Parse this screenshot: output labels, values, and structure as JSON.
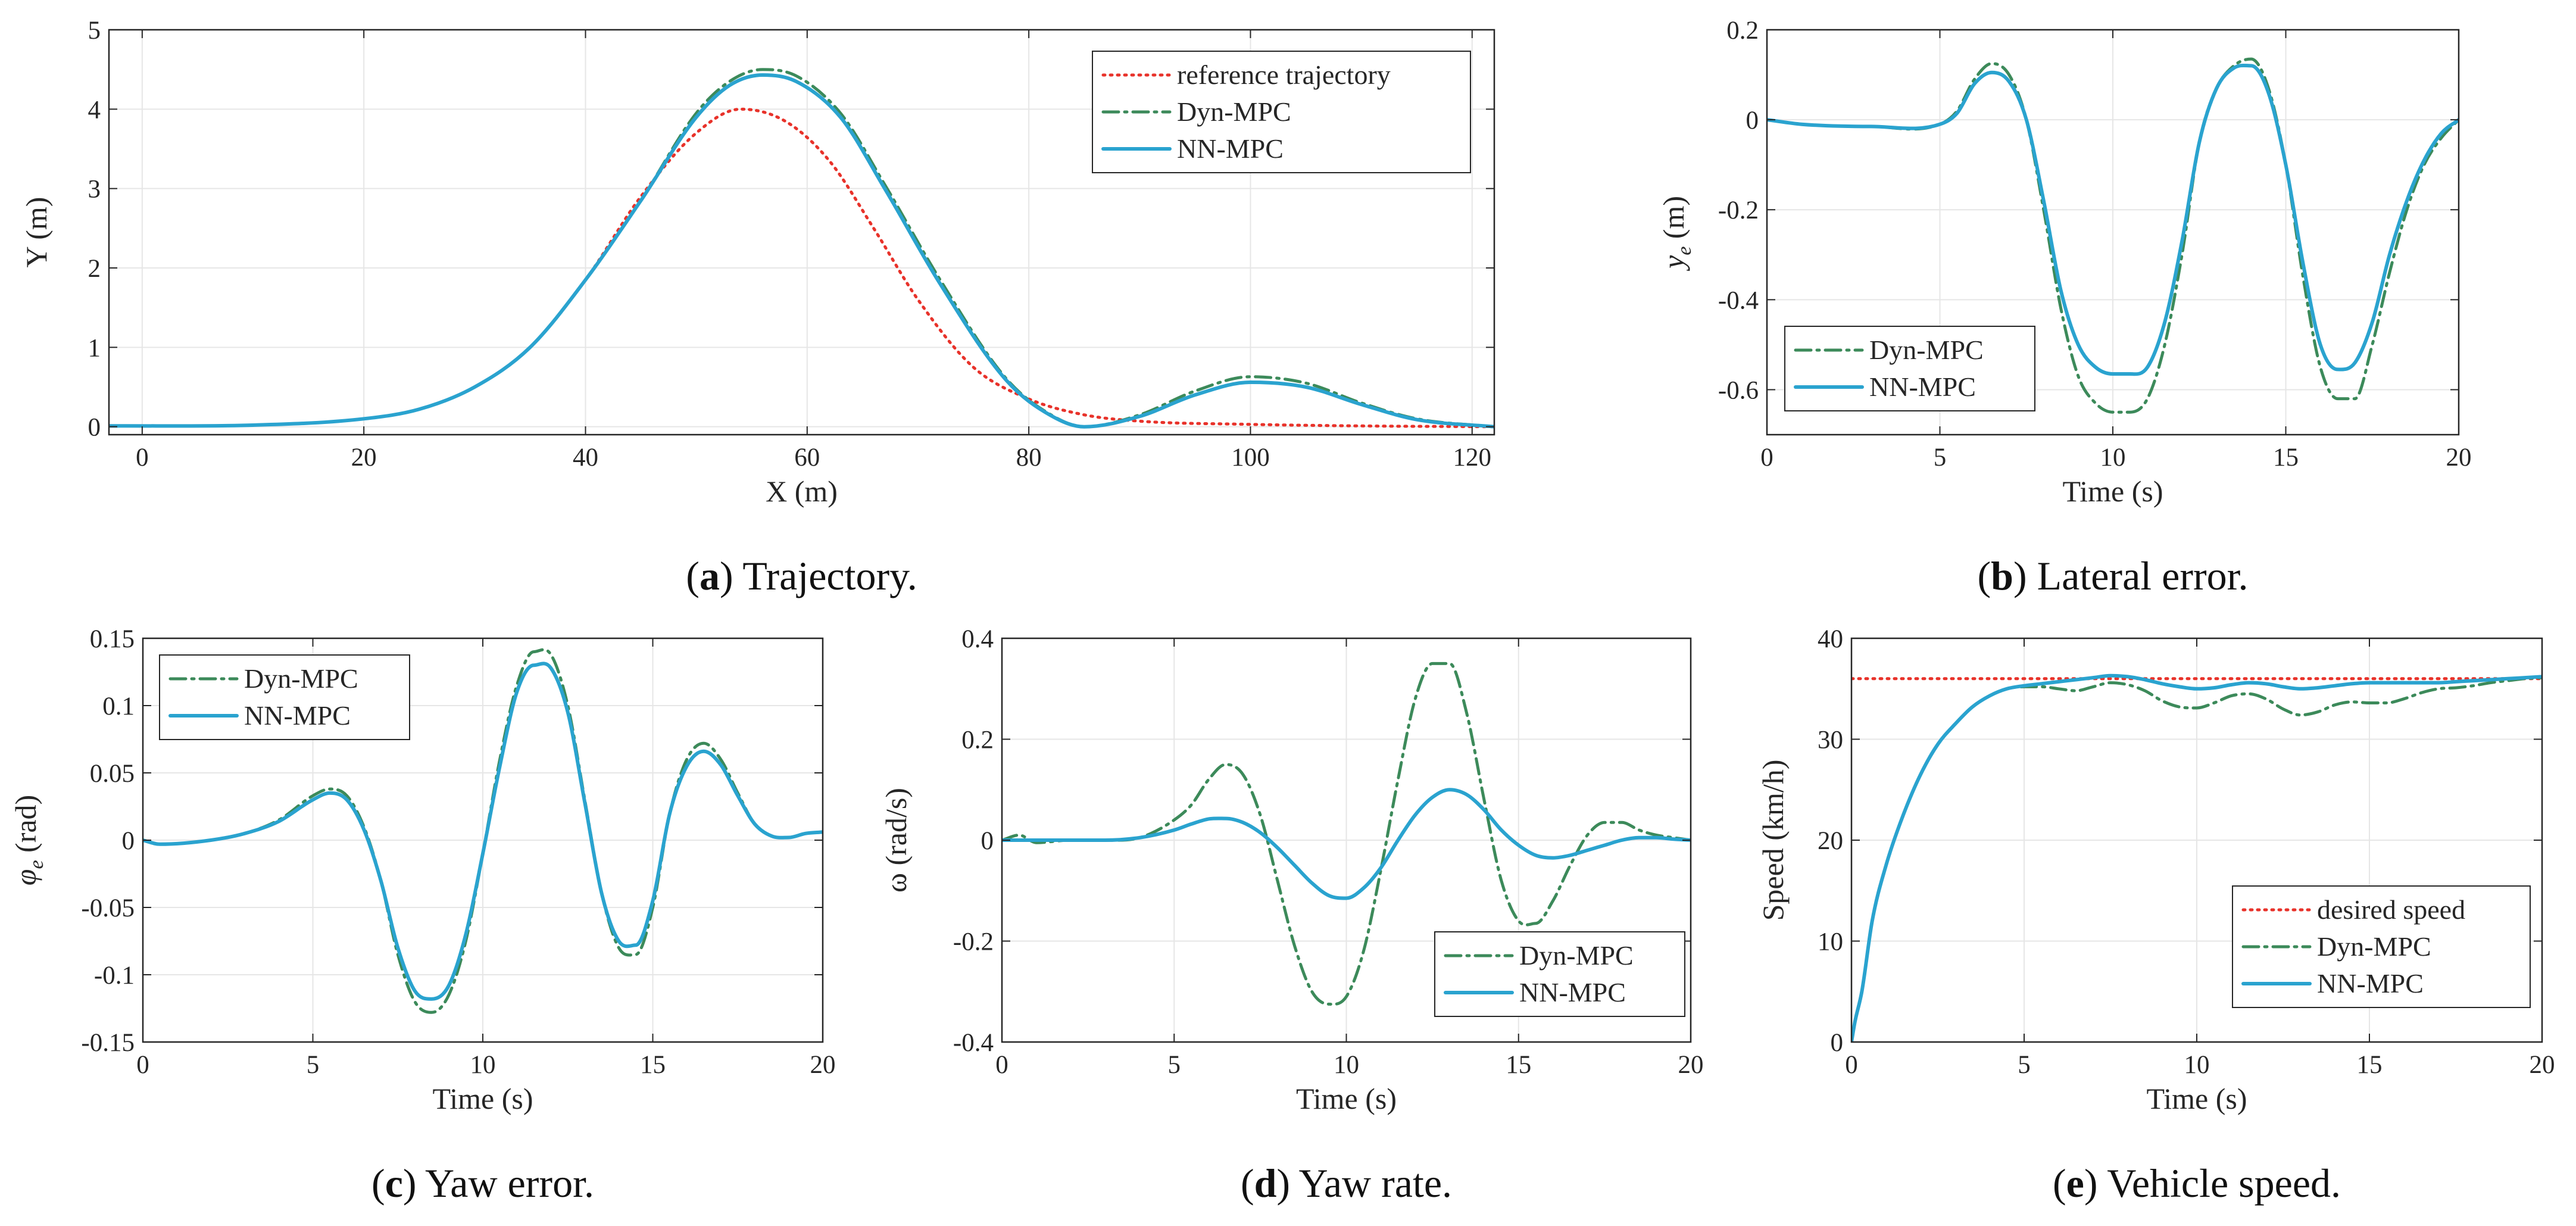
{
  "colors": {
    "reference": "#e8322a",
    "dyn": "#3c8a5a",
    "nn": "#2aa3cf",
    "grid": "#e6e6e6",
    "axis": "#262626"
  },
  "chart_data": [
    {
      "id": "a",
      "type": "line",
      "caption": {
        "letter": "a",
        "text": " Trajectory."
      },
      "xlabel": "X (m)",
      "ylabel": "Y (m)",
      "xlim": [
        -3,
        122
      ],
      "ylim": [
        -0.1,
        5
      ],
      "xticks": [
        0,
        20,
        40,
        60,
        80,
        100,
        120
      ],
      "yticks": [
        0,
        1,
        2,
        3,
        4,
        5
      ],
      "grid": true,
      "legend_position": "top-right",
      "series": [
        {
          "name": "reference trajectory",
          "style": "dotted",
          "color": "#e8322a",
          "x": [
            -3,
            10,
            20,
            25,
            30,
            35,
            40,
            45,
            50,
            54,
            58,
            62,
            66,
            70,
            75,
            80,
            85,
            90,
            100,
            110,
            122
          ],
          "y": [
            0.01,
            0.02,
            0.1,
            0.22,
            0.5,
            1.0,
            1.85,
            2.9,
            3.7,
            4.0,
            3.85,
            3.35,
            2.5,
            1.6,
            0.75,
            0.35,
            0.15,
            0.07,
            0.03,
            0.01,
            0.0
          ]
        },
        {
          "name": "Dyn-MPC",
          "style": "dashdot",
          "color": "#3c8a5a",
          "x": [
            -3,
            10,
            20,
            25,
            30,
            35,
            40,
            45,
            50,
            53,
            56,
            59,
            63,
            67,
            72,
            78,
            82,
            85,
            90,
            95,
            100,
            105,
            110,
            115,
            122
          ],
          "y": [
            0.01,
            0.02,
            0.1,
            0.22,
            0.5,
            1.0,
            1.85,
            2.85,
            3.95,
            4.35,
            4.5,
            4.42,
            3.95,
            3.05,
            1.85,
            0.6,
            0.15,
            0.0,
            0.15,
            0.45,
            0.63,
            0.55,
            0.3,
            0.1,
            0.0
          ]
        },
        {
          "name": "NN-MPC",
          "style": "solid",
          "color": "#2aa3cf",
          "x": [
            -3,
            10,
            20,
            25,
            30,
            35,
            40,
            45,
            50,
            53,
            56,
            59,
            63,
            67,
            72,
            78,
            82,
            85,
            90,
            95,
            100,
            105,
            110,
            115,
            122
          ],
          "y": [
            0.01,
            0.02,
            0.1,
            0.22,
            0.5,
            1.0,
            1.85,
            2.85,
            3.9,
            4.3,
            4.43,
            4.35,
            3.9,
            3.0,
            1.8,
            0.58,
            0.14,
            0.0,
            0.13,
            0.4,
            0.56,
            0.5,
            0.28,
            0.09,
            0.0
          ]
        }
      ]
    },
    {
      "id": "b",
      "type": "line",
      "caption": {
        "letter": "b",
        "text": " Lateral error."
      },
      "xlabel": "Time (s)",
      "ylabel_main": "y",
      "ylabel_sub": "e",
      "ylabel_unit": " (m)",
      "xlim": [
        0,
        20
      ],
      "ylim": [
        -0.7,
        0.2
      ],
      "xticks": [
        0,
        5,
        10,
        15,
        20
      ],
      "yticks": [
        0.2,
        0,
        -0.2,
        -0.4,
        -0.6
      ],
      "grid": true,
      "legend_position": "bottom-left",
      "series": [
        {
          "name": "Dyn-MPC",
          "style": "dashdot",
          "color": "#3c8a5a",
          "x": [
            0,
            1,
            3,
            5,
            5.5,
            6,
            6.5,
            7,
            7.5,
            8,
            8.5,
            9,
            9.5,
            10,
            10.5,
            11,
            11.5,
            12,
            12.5,
            13,
            13.5,
            14,
            14.5,
            15,
            15.5,
            16,
            16.5,
            17,
            17.5,
            18,
            18.5,
            19,
            19.5,
            20
          ],
          "y": [
            0,
            -0.01,
            -0.015,
            -0.01,
            0.02,
            0.09,
            0.125,
            0.1,
            0.0,
            -0.2,
            -0.42,
            -0.57,
            -0.63,
            -0.65,
            -0.65,
            -0.62,
            -0.5,
            -0.3,
            -0.05,
            0.07,
            0.12,
            0.135,
            0.07,
            -0.1,
            -0.35,
            -0.55,
            -0.62,
            -0.62,
            -0.5,
            -0.34,
            -0.2,
            -0.1,
            -0.04,
            0.0
          ]
        },
        {
          "name": "NN-MPC",
          "style": "solid",
          "color": "#2aa3cf",
          "x": [
            0,
            1,
            3,
            5,
            5.5,
            6,
            6.5,
            7,
            7.5,
            8,
            8.5,
            9,
            9.5,
            10,
            10.5,
            11,
            11.5,
            12,
            12.5,
            13,
            13.5,
            14,
            14.5,
            15,
            15.5,
            16,
            16.5,
            17,
            17.5,
            18,
            18.5,
            19,
            19.5,
            20
          ],
          "y": [
            0,
            -0.01,
            -0.015,
            -0.01,
            0.015,
            0.08,
            0.105,
            0.085,
            0.0,
            -0.18,
            -0.38,
            -0.5,
            -0.55,
            -0.565,
            -0.565,
            -0.55,
            -0.45,
            -0.27,
            -0.05,
            0.07,
            0.115,
            0.12,
            0.06,
            -0.1,
            -0.32,
            -0.5,
            -0.555,
            -0.54,
            -0.45,
            -0.3,
            -0.18,
            -0.09,
            -0.03,
            0.0
          ]
        }
      ]
    },
    {
      "id": "c",
      "type": "line",
      "caption": {
        "letter": "c",
        "text": " Yaw error."
      },
      "xlabel": "Time (s)",
      "ylabel_main": "φ",
      "ylabel_sub": "e",
      "ylabel_unit": " (rad)",
      "xlim": [
        0,
        20
      ],
      "ylim": [
        -0.15,
        0.15
      ],
      "xticks": [
        0,
        5,
        10,
        15,
        20
      ],
      "yticks": [
        0.15,
        0.1,
        0.05,
        0,
        -0.05,
        -0.1,
        -0.15
      ],
      "grid": true,
      "legend_position": "top-left",
      "series": [
        {
          "name": "Dyn-MPC",
          "style": "dashdot",
          "color": "#3c8a5a",
          "x": [
            0,
            0.5,
            2,
            3,
            4,
            5,
            5.5,
            6,
            6.5,
            7,
            7.5,
            8,
            8.5,
            9,
            9.5,
            10,
            10.5,
            11,
            11.5,
            12,
            12.5,
            13,
            13.5,
            14,
            14.5,
            15,
            15.5,
            16,
            16.5,
            17,
            17.5,
            18,
            18.5,
            19,
            19.5,
            20
          ],
          "y": [
            0,
            -0.003,
            0,
            0.005,
            0.015,
            0.033,
            0.038,
            0.033,
            0.01,
            -0.03,
            -0.085,
            -0.12,
            -0.128,
            -0.115,
            -0.075,
            -0.01,
            0.06,
            0.115,
            0.14,
            0.138,
            0.1,
            0.03,
            -0.04,
            -0.08,
            -0.085,
            -0.05,
            0.02,
            0.06,
            0.072,
            0.06,
            0.035,
            0.012,
            0.003,
            0.002,
            0.005,
            0.006
          ]
        },
        {
          "name": "NN-MPC",
          "style": "solid",
          "color": "#2aa3cf",
          "x": [
            0,
            0.5,
            2,
            3,
            4,
            5,
            5.5,
            6,
            6.5,
            7,
            7.5,
            8,
            8.5,
            9,
            9.5,
            10,
            10.5,
            11,
            11.5,
            12,
            12.5,
            13,
            13.5,
            14,
            14.5,
            15,
            15.5,
            16,
            16.5,
            17,
            17.5,
            18,
            18.5,
            19,
            19.5,
            20
          ],
          "y": [
            0,
            -0.003,
            0,
            0.005,
            0.014,
            0.03,
            0.035,
            0.03,
            0.008,
            -0.03,
            -0.08,
            -0.112,
            -0.118,
            -0.108,
            -0.07,
            -0.01,
            0.055,
            0.11,
            0.13,
            0.128,
            0.095,
            0.028,
            -0.04,
            -0.075,
            -0.078,
            -0.045,
            0.02,
            0.055,
            0.066,
            0.056,
            0.033,
            0.012,
            0.003,
            0.002,
            0.005,
            0.006
          ]
        }
      ]
    },
    {
      "id": "d",
      "type": "line",
      "caption": {
        "letter": "d",
        "text": " Yaw rate."
      },
      "xlabel": "Time (s)",
      "ylabel": "ω (rad/s)",
      "xlim": [
        0,
        20
      ],
      "ylim": [
        -0.4,
        0.4
      ],
      "xticks": [
        0,
        5,
        10,
        15,
        20
      ],
      "yticks": [
        0.4,
        0.2,
        0,
        -0.2,
        -0.4
      ],
      "grid": true,
      "legend_position": "bottom-right",
      "series": [
        {
          "name": "Dyn-MPC",
          "style": "dashdot",
          "color": "#3c8a5a",
          "x": [
            0,
            0.5,
            1,
            2,
            3,
            4,
            5,
            5.5,
            6,
            6.5,
            7,
            7.5,
            8,
            8.5,
            9,
            9.5,
            10,
            10.5,
            11,
            11.5,
            12,
            12.5,
            13,
            13.5,
            14,
            14.5,
            15,
            15.5,
            16,
            16.5,
            17,
            17.5,
            18,
            18.5,
            19,
            19.5,
            20
          ],
          "y": [
            0,
            0.01,
            -0.005,
            0,
            0,
            0.005,
            0.04,
            0.07,
            0.12,
            0.15,
            0.13,
            0.05,
            -0.08,
            -0.21,
            -0.3,
            -0.325,
            -0.31,
            -0.22,
            -0.06,
            0.12,
            0.28,
            0.35,
            0.35,
            0.25,
            0.08,
            -0.08,
            -0.16,
            -0.165,
            -0.12,
            -0.05,
            0.01,
            0.035,
            0.035,
            0.02,
            0.01,
            0.005,
            0
          ]
        },
        {
          "name": "NN-MPC",
          "style": "solid",
          "color": "#2aa3cf",
          "x": [
            0,
            1,
            2,
            3,
            4,
            5,
            5.5,
            6,
            6.5,
            7,
            7.5,
            8,
            8.5,
            9,
            9.5,
            10,
            10.5,
            11,
            11.5,
            12,
            12.5,
            13,
            13.5,
            14,
            14.5,
            15,
            15.5,
            16,
            16.5,
            17,
            17.5,
            18,
            18.5,
            19,
            19.5,
            20
          ],
          "y": [
            0,
            0,
            0,
            0,
            0.005,
            0.02,
            0.032,
            0.042,
            0.043,
            0.035,
            0.015,
            -0.015,
            -0.05,
            -0.085,
            -0.11,
            -0.115,
            -0.095,
            -0.055,
            0.0,
            0.05,
            0.085,
            0.1,
            0.09,
            0.06,
            0.02,
            -0.01,
            -0.03,
            -0.035,
            -0.03,
            -0.02,
            -0.01,
            0.0,
            0.005,
            0.005,
            0.002,
            0
          ]
        }
      ]
    },
    {
      "id": "e",
      "type": "line",
      "caption": {
        "letter": "e",
        "text": " Vehicle speed."
      },
      "xlabel": "Time (s)",
      "ylabel": "Speed (km/h)",
      "xlim": [
        0,
        20
      ],
      "ylim": [
        0,
        40
      ],
      "xticks": [
        0,
        5,
        10,
        15,
        20
      ],
      "yticks": [
        0,
        10,
        20,
        30,
        40
      ],
      "grid": true,
      "legend_position": "bottom-right",
      "series": [
        {
          "name": "desired speed",
          "style": "dotted",
          "color": "#e8322a",
          "x": [
            0,
            20
          ],
          "y": [
            36,
            36
          ]
        },
        {
          "name": "Dyn-MPC",
          "style": "dashdot",
          "color": "#3c8a5a",
          "x": [
            0,
            0.1,
            0.3,
            0.6,
            1,
            1.5,
            2,
            2.5,
            3,
            3.5,
            4,
            4.5,
            5,
            5.5,
            6,
            6.5,
            7,
            7.5,
            8,
            8.5,
            9,
            9.5,
            10,
            10.5,
            11,
            11.5,
            12,
            12.5,
            13,
            13.5,
            14,
            14.5,
            15,
            15.5,
            16,
            16.5,
            17,
            17.5,
            18,
            18.5,
            19,
            19.5,
            20
          ],
          "y": [
            0,
            2,
            5,
            12,
            17.5,
            22.5,
            26.5,
            29.5,
            31.5,
            33.2,
            34.3,
            35,
            35.2,
            35.2,
            35.0,
            34.8,
            35.2,
            35.6,
            35.4,
            34.8,
            33.8,
            33.2,
            33.1,
            33.6,
            34.3,
            34.5,
            34.0,
            33.0,
            32.4,
            32.7,
            33.4,
            33.7,
            33.6,
            33.6,
            34.0,
            34.6,
            35.0,
            35.1,
            35.3,
            35.6,
            35.8,
            36.0,
            36.1
          ]
        },
        {
          "name": "NN-MPC",
          "style": "solid",
          "color": "#2aa3cf",
          "x": [
            0,
            0.1,
            0.3,
            0.6,
            1,
            1.5,
            2,
            2.5,
            3,
            3.5,
            4,
            4.5,
            5,
            5.5,
            6,
            6.5,
            7,
            7.5,
            8,
            8.5,
            9,
            9.5,
            10,
            10.5,
            11,
            11.5,
            12,
            12.5,
            13,
            13.5,
            14,
            14.5,
            15,
            15.5,
            16,
            16.5,
            17,
            17.5,
            18,
            18.5,
            19,
            19.5,
            20
          ],
          "y": [
            0,
            2,
            5,
            12,
            17.5,
            22.5,
            26.5,
            29.5,
            31.5,
            33.2,
            34.3,
            35,
            35.3,
            35.5,
            35.7,
            35.9,
            36.1,
            36.3,
            36.2,
            35.9,
            35.5,
            35.2,
            35.0,
            35.1,
            35.4,
            35.6,
            35.5,
            35.2,
            35.0,
            35.1,
            35.3,
            35.5,
            35.6,
            35.6,
            35.6,
            35.6,
            35.6,
            35.7,
            35.8,
            35.9,
            36.0,
            36.1,
            36.2
          ]
        }
      ]
    }
  ]
}
